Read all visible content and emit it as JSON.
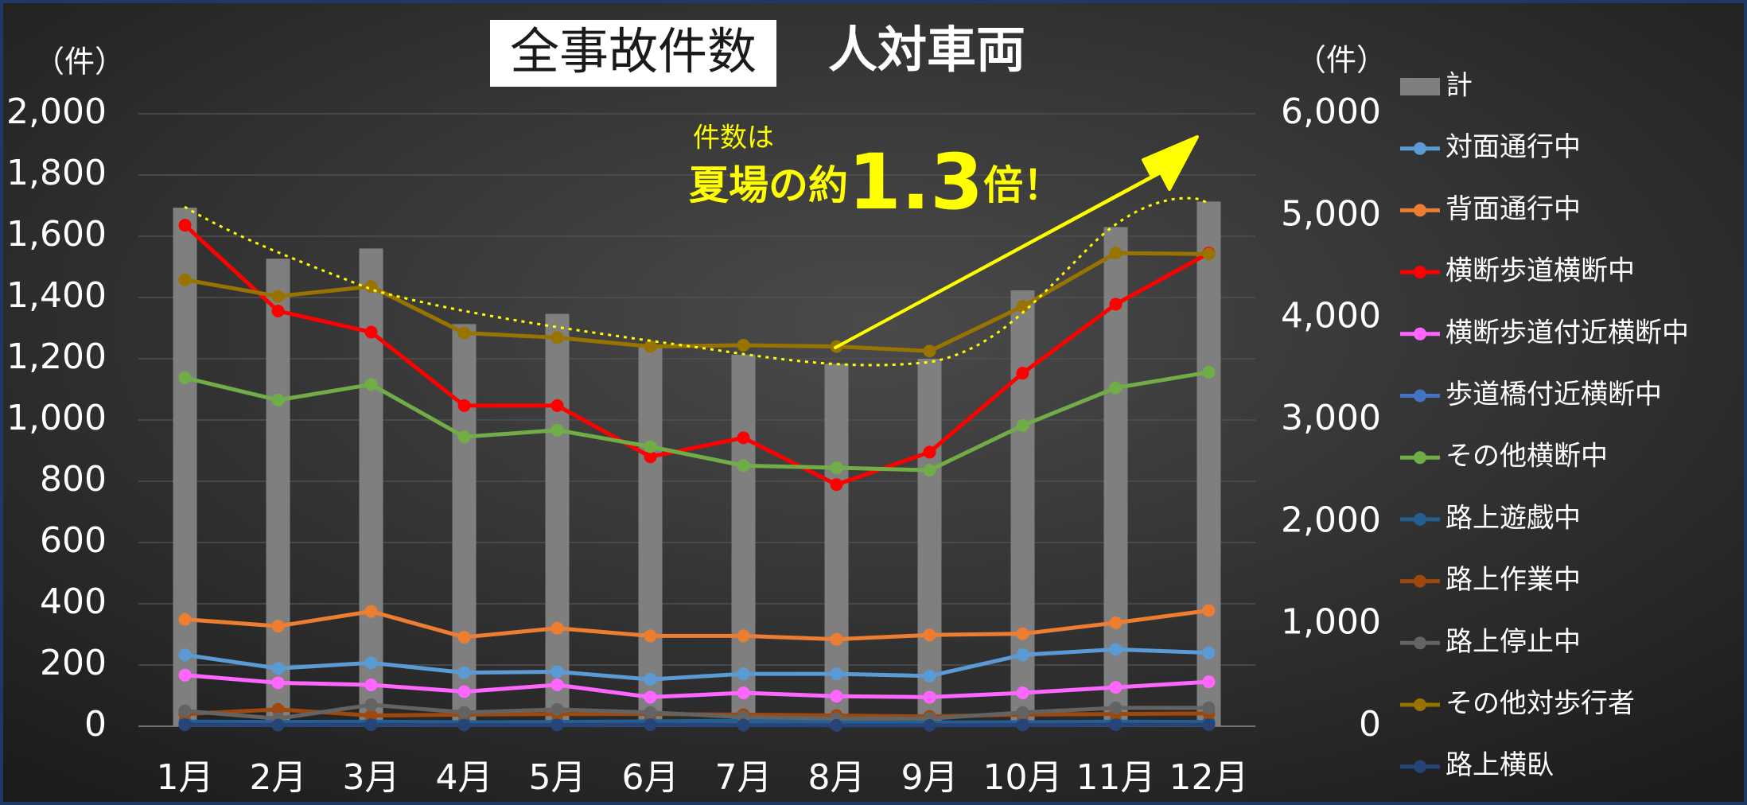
{
  "chart_data": {
    "type": "combo",
    "title": "全事故件数",
    "subtitle": "人対車両",
    "y_label": "（件）",
    "y2_label": "（件）",
    "annotation": {
      "line1": "件数は",
      "line2a": "夏場の約",
      "line2b": "1.3",
      "line2c": "倍！"
    },
    "categories": [
      "1月",
      "2月",
      "3月",
      "4月",
      "5月",
      "6月",
      "7月",
      "8月",
      "9月",
      "10月",
      "11月",
      "12月"
    ],
    "ylim": [
      0,
      2000
    ],
    "yticks": [
      0,
      200,
      400,
      600,
      800,
      {
        "value": 1000,
        "label": "1,000"
      },
      {
        "value": 1200,
        "label": "1,200"
      },
      {
        "value": 1400,
        "label": "1,400"
      },
      {
        "value": 1600,
        "label": "1,600"
      },
      {
        "value": 1800,
        "label": "1,800"
      },
      {
        "value": 2000,
        "label": "2,000"
      }
    ],
    "y2lim": [
      0,
      6000
    ],
    "y2ticks": [
      0,
      {
        "value": 1000,
        "label": "1,000"
      },
      {
        "value": 2000,
        "label": "2,000"
      },
      {
        "value": 3000,
        "label": "3,000"
      },
      {
        "value": 4000,
        "label": "4,000"
      },
      {
        "value": 5000,
        "label": "5,000"
      },
      {
        "value": 6000,
        "label": "6,000"
      }
    ],
    "grid": true,
    "legend": "right",
    "series": [
      {
        "name": "計",
        "type": "bar",
        "axis": "y2",
        "color": "#7f7f7f",
        "values": [
          5080,
          4580,
          4680,
          3940,
          4040,
          3730,
          3640,
          3550,
          3600,
          4270,
          4890,
          5140
        ]
      },
      {
        "name": "対面通行中",
        "type": "line",
        "color": "#5b9bd5",
        "values": [
          233,
          189,
          207,
          175,
          178,
          153,
          171,
          171,
          164,
          233,
          251,
          240
        ]
      },
      {
        "name": "背面通行中",
        "type": "line",
        "color": "#ed7d31",
        "values": [
          349,
          327,
          375,
          291,
          320,
          295,
          295,
          284,
          298,
          302,
          338,
          378
        ]
      },
      {
        "name": "横断歩道横断中",
        "type": "line",
        "color": "#ff0000",
        "values": [
          1636,
          1356,
          1287,
          1047,
          1047,
          880,
          942,
          789,
          895,
          1153,
          1378,
          1545
        ]
      },
      {
        "name": "横断歩道付近横断中",
        "type": "line",
        "color": "#ff66ff",
        "values": [
          167,
          142,
          135,
          113,
          135,
          95,
          109,
          98,
          95,
          109,
          127,
          145
        ]
      },
      {
        "name": "歩道橋付近横断中",
        "type": "line",
        "color": "#4472c4",
        "values": [
          8,
          8,
          8,
          7,
          8,
          7,
          6,
          6,
          6,
          7,
          8,
          8
        ]
      },
      {
        "name": "その他横断中",
        "type": "line",
        "color": "#70ad47",
        "values": [
          1138,
          1065,
          1116,
          945,
          967,
          913,
          851,
          844,
          836,
          982,
          1105,
          1156
        ]
      },
      {
        "name": "路上遊戯中",
        "type": "line",
        "color": "#255e91",
        "values": [
          15,
          14,
          15,
          13,
          14,
          16,
          18,
          14,
          12,
          13,
          15,
          14
        ]
      },
      {
        "name": "路上作業中",
        "type": "line",
        "color": "#9e480e",
        "values": [
          40,
          55,
          35,
          38,
          40,
          40,
          38,
          35,
          32,
          38,
          40,
          42
        ]
      },
      {
        "name": "路上停止中",
        "type": "line",
        "color": "#636363",
        "values": [
          50,
          25,
          70,
          45,
          55,
          45,
          30,
          25,
          25,
          45,
          60,
          60
        ]
      },
      {
        "name": "その他対歩行者",
        "type": "line",
        "color": "#997300",
        "values": [
          1458,
          1404,
          1436,
          1284,
          1269,
          1240,
          1244,
          1240,
          1225,
          1371,
          1545,
          1542
        ]
      },
      {
        "name": "路上横臥",
        "type": "line",
        "color": "#264478",
        "values": [
          5,
          4,
          5,
          4,
          4,
          5,
          4,
          3,
          3,
          4,
          5,
          5
        ]
      }
    ]
  }
}
